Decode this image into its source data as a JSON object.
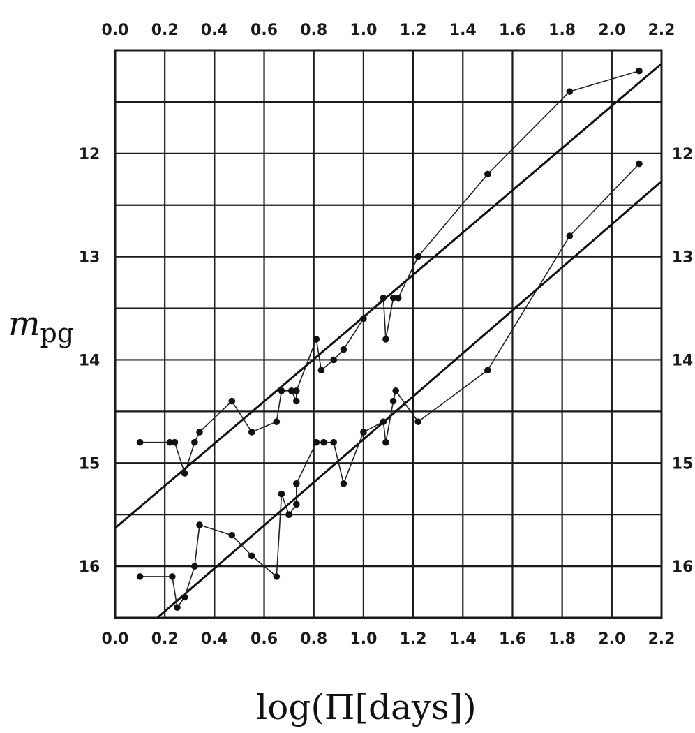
{
  "chart_data": {
    "type": "scatter",
    "xlabel": "log(Π[days])",
    "ylabel": "m_pg",
    "xlim": [
      0.0,
      2.2
    ],
    "ylim": [
      16.5,
      11.0
    ],
    "y_inverted": true,
    "grid": true,
    "x_ticks": [
      "0.0",
      "0.2",
      "0.4",
      "0.6",
      "0.8",
      "1.0",
      "1.2",
      "1.4",
      "1.6",
      "1.8",
      "2.0",
      "2.2"
    ],
    "y_ticks": [
      "12",
      "13",
      "14",
      "15",
      "16"
    ],
    "series": [
      {
        "points": [
          [
            0.1,
            14.8
          ],
          [
            0.22,
            14.8
          ],
          [
            0.24,
            14.8
          ],
          [
            0.28,
            15.1
          ],
          [
            0.32,
            14.8
          ],
          [
            0.34,
            14.7
          ],
          [
            0.47,
            14.4
          ],
          [
            0.55,
            14.7
          ],
          [
            0.65,
            14.6
          ],
          [
            0.67,
            14.3
          ],
          [
            0.71,
            14.3
          ],
          [
            0.73,
            14.4
          ],
          [
            0.73,
            14.3
          ],
          [
            0.81,
            13.8
          ],
          [
            0.83,
            14.1
          ],
          [
            0.88,
            14.0
          ],
          [
            0.92,
            13.9
          ],
          [
            1.0,
            13.6
          ],
          [
            1.08,
            13.4
          ],
          [
            1.09,
            13.8
          ],
          [
            1.12,
            13.4
          ],
          [
            1.14,
            13.4
          ],
          [
            1.22,
            13.0
          ],
          [
            1.5,
            12.2
          ],
          [
            1.83,
            11.4
          ],
          [
            2.11,
            11.2
          ]
        ],
        "fit": [
          [
            0.0,
            15.63
          ],
          [
            2.2,
            11.13
          ]
        ]
      },
      {
        "points": [
          [
            0.1,
            16.1
          ],
          [
            0.23,
            16.1
          ],
          [
            0.25,
            16.4
          ],
          [
            0.28,
            16.3
          ],
          [
            0.32,
            16.0
          ],
          [
            0.34,
            15.6
          ],
          [
            0.47,
            15.7
          ],
          [
            0.55,
            15.9
          ],
          [
            0.65,
            16.1
          ],
          [
            0.67,
            15.3
          ],
          [
            0.7,
            15.5
          ],
          [
            0.73,
            15.4
          ],
          [
            0.73,
            15.2
          ],
          [
            0.81,
            14.8
          ],
          [
            0.84,
            14.8
          ],
          [
            0.88,
            14.8
          ],
          [
            0.92,
            15.2
          ],
          [
            1.0,
            14.7
          ],
          [
            1.08,
            14.6
          ],
          [
            1.09,
            14.8
          ],
          [
            1.12,
            14.4
          ],
          [
            1.13,
            14.3
          ],
          [
            1.22,
            14.6
          ],
          [
            1.5,
            14.1
          ],
          [
            1.83,
            12.8
          ],
          [
            2.11,
            12.1
          ]
        ],
        "fit": [
          [
            0.17,
            16.5
          ],
          [
            2.2,
            12.27
          ]
        ]
      }
    ]
  }
}
